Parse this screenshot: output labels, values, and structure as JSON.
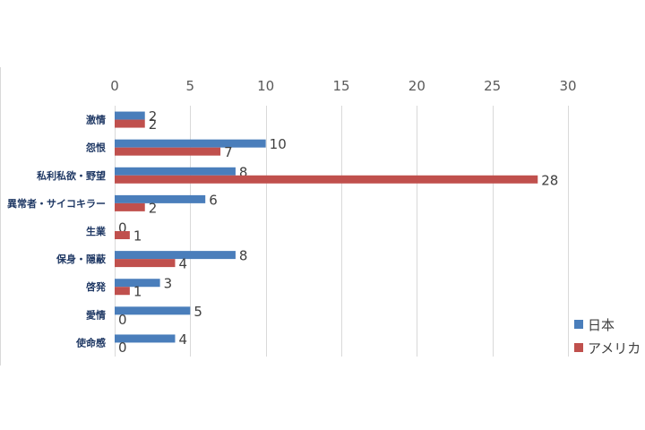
{
  "chart_data": {
    "type": "bar",
    "orientation": "horizontal",
    "categories": [
      "激情",
      "怨恨",
      "私利私欲・野望",
      "異常者・サイコキラー",
      "生業",
      "保身・隠蔽",
      "啓発",
      "愛情",
      "使命感"
    ],
    "series": [
      {
        "name": "日本",
        "color": "#4a7ebb",
        "values": [
          2,
          10,
          8,
          6,
          0,
          8,
          3,
          5,
          4
        ]
      },
      {
        "name": "アメリカ",
        "color": "#c0504d",
        "values": [
          2,
          7,
          28,
          2,
          1,
          4,
          1,
          0,
          0
        ]
      }
    ],
    "xlim": [
      0,
      30
    ],
    "xticks": [
      0,
      5,
      10,
      15,
      20,
      25,
      30
    ],
    "axis_position": "top",
    "grid": true,
    "legend_position": "right",
    "data_labels": true
  }
}
